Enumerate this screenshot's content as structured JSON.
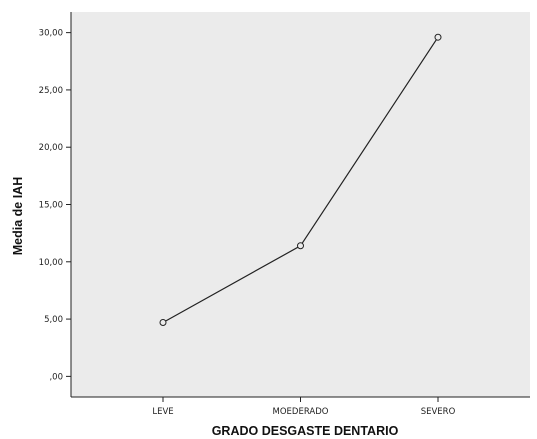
{
  "chart_data": {
    "type": "line",
    "categories": [
      "LEVE",
      "MOEDERADO",
      "SEVERO"
    ],
    "series": [
      {
        "values": [
          4.7,
          11.4,
          29.6
        ]
      }
    ],
    "y_ticks": [
      {
        "value": 0,
        "label": ",00"
      },
      {
        "value": 5,
        "label": "5,00"
      },
      {
        "value": 10,
        "label": "10,00"
      },
      {
        "value": 15,
        "label": "15,00"
      },
      {
        "value": 20,
        "label": "20,00"
      },
      {
        "value": 25,
        "label": "25,00"
      },
      {
        "value": 30,
        "label": "30,00"
      }
    ],
    "xlabel": "GRADO DESGASTE DENTARIO",
    "ylabel": "Media de IAH",
    "ylim": [
      -1.8,
      31.8
    ],
    "grid": false,
    "marker": "open-circle",
    "colors": {
      "plot_background": "#ebebeb",
      "line": "#222222",
      "axis": "#222222"
    }
  }
}
